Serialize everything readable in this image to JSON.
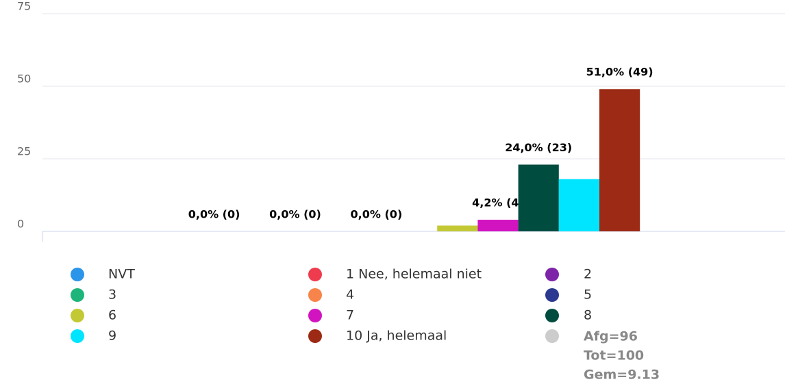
{
  "chart_data": {
    "type": "bar",
    "categories": [
      "NVT",
      "1 Nee, helemaal niet",
      "2",
      "3",
      "4",
      "5",
      "6",
      "7",
      "8",
      "9",
      "10 Ja, helemaal"
    ],
    "values": [
      0,
      0,
      0,
      0,
      0,
      0,
      2,
      4,
      23,
      18,
      49
    ],
    "value_labels": [
      "0,0% (0)",
      null,
      "0,0% (0)",
      null,
      "0,0% (0)",
      null,
      null,
      "4,2% (4)",
      "24,0% (23)",
      null,
      "51,0% (49)"
    ],
    "colors": [
      "#2b95e9",
      "#ef3b4e",
      "#7e24a8",
      "#1db57a",
      "#f7844a",
      "#2b3990",
      "#c3c934",
      "#d214c0",
      "#004d40",
      "#00e5ff",
      "#9c2a14"
    ],
    "ylim": [
      0,
      75
    ],
    "yticks": [
      0,
      25,
      50,
      75
    ],
    "grid": true,
    "annotations": [
      "Afg=96",
      "Tot=100",
      "Gem=9.13"
    ],
    "annotation_color": "#cccccc"
  }
}
